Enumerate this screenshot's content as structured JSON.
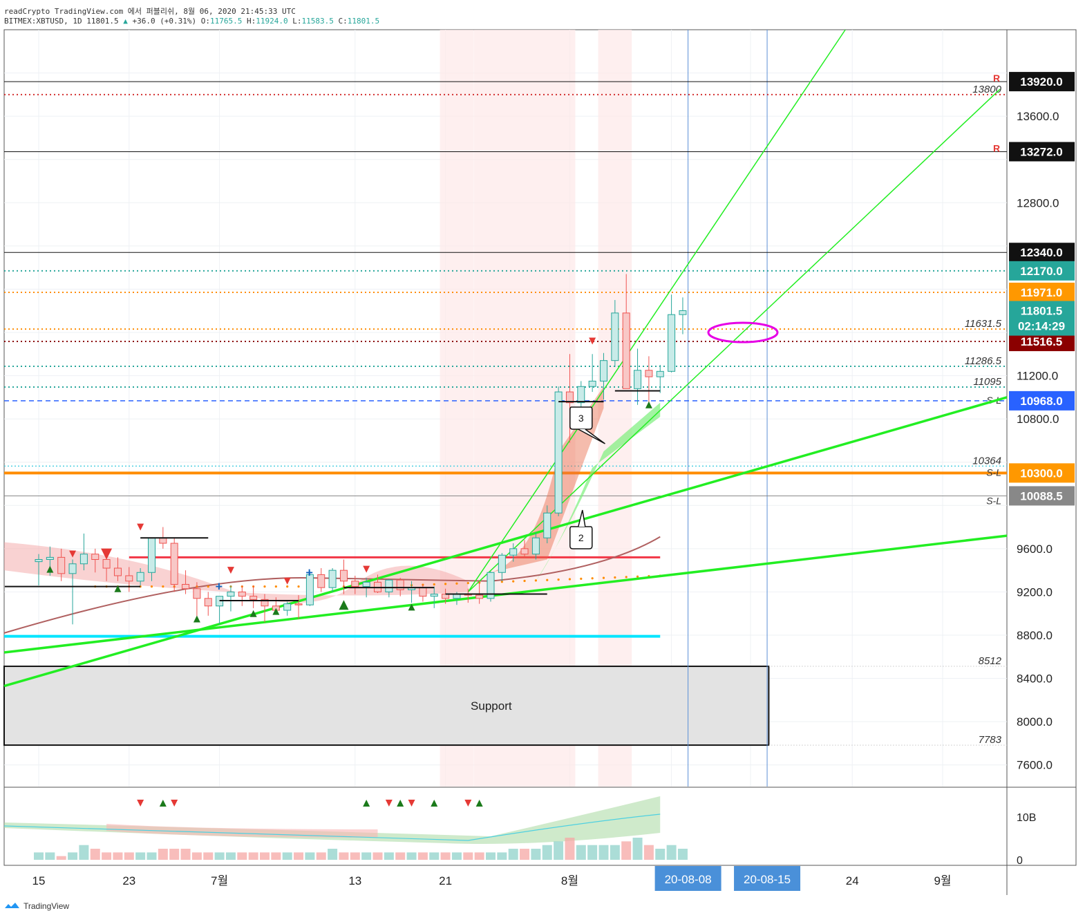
{
  "header": {
    "line1": "readCrypto TradingView.com 에서 퍼블리쉬, 8월 06, 2020 21:45:33 UTC",
    "symbol": "BITMEX:XBTUSD, 1D",
    "last": "11801.5",
    "change": "+36.0 (+0.31%)",
    "o_label": "O:",
    "o": "11765.5",
    "h_label": "H:",
    "h": "11924.0",
    "l_label": "L:",
    "l": "11583.5",
    "c_label": "C:",
    "c": "11801.5"
  },
  "footer": {
    "brand": "TradingView"
  },
  "colors": {
    "up": "#26a69a",
    "down": "#ef5350",
    "green_line": "#22ee22",
    "orange": "#ff8c00",
    "cyan": "#00e5ff",
    "red_line": "#f23645",
    "blue": "#2962ff",
    "magenta": "#e600e6"
  },
  "chart_data": {
    "type": "candlestick",
    "timeframe": "1D",
    "ylim": [
      7400,
      14400
    ],
    "y_ticks": [
      "7600.0",
      "8000.0",
      "8400.0",
      "8800.0",
      "9200.0",
      "9600.0",
      "10800.0",
      "11200.0",
      "12800.0",
      "13600.0"
    ],
    "x_ticks": [
      {
        "i": 0,
        "label": "15"
      },
      {
        "i": 8,
        "label": "23"
      },
      {
        "i": 16,
        "label": "7월"
      },
      {
        "i": 28,
        "label": "13"
      },
      {
        "i": 36,
        "label": "21"
      },
      {
        "i": 47,
        "label": "8월"
      },
      {
        "i": 56,
        "label": "20-08-08",
        "highlight": true
      },
      {
        "i": 63,
        "label": "20-08-15",
        "highlight": true
      },
      {
        "i": 72,
        "label": "24"
      },
      {
        "i": 80,
        "label": "9월"
      }
    ],
    "candles": [
      [
        9480,
        9550,
        9260,
        9500
      ],
      [
        9500,
        9620,
        9350,
        9520
      ],
      [
        9520,
        9600,
        9300,
        9370
      ],
      [
        9370,
        9500,
        8900,
        9460
      ],
      [
        9460,
        9740,
        9400,
        9550
      ],
      [
        9550,
        9600,
        9380,
        9500
      ],
      [
        9500,
        9560,
        9300,
        9420
      ],
      [
        9420,
        9520,
        9300,
        9350
      ],
      [
        9350,
        9430,
        9200,
        9300
      ],
      [
        9300,
        9420,
        9260,
        9380
      ],
      [
        9380,
        9700,
        9300,
        9700
      ],
      [
        9700,
        9800,
        9600,
        9650
      ],
      [
        9650,
        9700,
        9200,
        9270
      ],
      [
        9270,
        9400,
        9180,
        9230
      ],
      [
        9230,
        9290,
        8940,
        9140
      ],
      [
        9140,
        9200,
        8980,
        9070
      ],
      [
        9070,
        9130,
        8900,
        9160
      ],
      [
        9160,
        9260,
        9020,
        9200
      ],
      [
        9200,
        9260,
        9070,
        9160
      ],
      [
        9160,
        9260,
        9050,
        9130
      ],
      [
        9130,
        9180,
        8920,
        9070
      ],
      [
        9070,
        9150,
        9000,
        9030
      ],
      [
        9030,
        9110,
        8980,
        9090
      ],
      [
        9090,
        9170,
        8950,
        9080
      ],
      [
        9080,
        9390,
        9070,
        9360
      ],
      [
        9360,
        9420,
        9200,
        9240
      ],
      [
        9240,
        9420,
        9200,
        9400
      ],
      [
        9400,
        9500,
        9180,
        9300
      ],
      [
        9300,
        9350,
        9180,
        9250
      ],
      [
        9250,
        9330,
        9150,
        9290
      ],
      [
        9290,
        9360,
        9190,
        9200
      ],
      [
        9200,
        9320,
        9150,
        9310
      ],
      [
        9310,
        9330,
        9160,
        9220
      ],
      [
        9220,
        9300,
        9100,
        9240
      ],
      [
        9240,
        9270,
        9110,
        9160
      ],
      [
        9160,
        9250,
        9050,
        9180
      ],
      [
        9180,
        9230,
        9090,
        9140
      ],
      [
        9140,
        9200,
        9080,
        9180
      ],
      [
        9180,
        9230,
        9100,
        9170
      ],
      [
        9170,
        9300,
        9090,
        9140
      ],
      [
        9140,
        9390,
        9110,
        9380
      ],
      [
        9380,
        9560,
        9300,
        9540
      ],
      [
        9540,
        9650,
        9480,
        9600
      ],
      [
        9600,
        9680,
        9520,
        9550
      ],
      [
        9550,
        9750,
        9500,
        9700
      ],
      [
        9700,
        10000,
        9650,
        9930
      ],
      [
        9930,
        11100,
        9900,
        11050
      ],
      [
        11050,
        11400,
        10580,
        10950
      ],
      [
        10950,
        11150,
        10900,
        11100
      ],
      [
        11100,
        11400,
        11050,
        11150
      ],
      [
        11150,
        11410,
        10980,
        11340
      ],
      [
        11340,
        11900,
        11280,
        11780
      ],
      [
        11780,
        12140,
        11080,
        11080
      ],
      [
        11080,
        11450,
        10930,
        11250
      ],
      [
        11250,
        11380,
        10950,
        11190
      ],
      [
        11190,
        11300,
        11040,
        11240
      ],
      [
        11240,
        11950,
        11230,
        11765
      ],
      [
        11765,
        11924,
        11583.5,
        11801.5
      ]
    ],
    "volume": [
      2,
      2,
      1,
      2,
      4,
      3,
      2,
      2,
      2,
      2,
      2,
      3,
      3,
      3,
      2,
      2,
      2,
      2,
      2,
      2,
      2,
      2,
      2,
      2,
      2,
      2,
      3,
      2,
      2,
      2,
      2,
      2,
      2,
      2,
      2,
      2,
      2,
      2,
      2,
      2,
      2,
      2,
      3,
      3,
      3,
      4,
      5,
      6,
      4,
      4,
      4,
      4,
      5,
      6,
      4,
      3,
      4,
      3
    ],
    "horizontal_levels": [
      {
        "price": 13920,
        "label": "13920.0",
        "style": "solid-black",
        "badge": "black",
        "marker": "R"
      },
      {
        "price": 13800,
        "label": "13800",
        "style": "dotted-red"
      },
      {
        "price": 13272,
        "label": "13272.0",
        "style": "solid-black",
        "badge": "black",
        "marker": "R"
      },
      {
        "price": 12340,
        "label": "12340.0",
        "style": "solid-black",
        "badge": "black"
      },
      {
        "price": 12170,
        "label": "12170.0",
        "style": "dotted-teal",
        "badge": "teal"
      },
      {
        "price": 11971,
        "label": "11971.0",
        "style": "dotted-orange",
        "badge": "orange"
      },
      {
        "price": 11801.5,
        "label": "11801.5",
        "style": "none",
        "badge": "teal"
      },
      {
        "price": 11631.5,
        "label": "11631.5",
        "style": "dotted-orange"
      },
      {
        "price": 11516.5,
        "label": "11516.5",
        "style": "dotted-darkred",
        "badge": "darkred"
      },
      {
        "price": 11286.5,
        "label": "11286.5",
        "style": "dotted-teal"
      },
      {
        "price": 11095,
        "label": "11095",
        "style": "dotted-teal"
      },
      {
        "price": 10968,
        "label": "10968.0",
        "style": "dashed-blue",
        "badge": "blue",
        "tag": "S-L"
      },
      {
        "price": 10364,
        "label": "10364",
        "style": "dotted-cyan"
      },
      {
        "price": 10300,
        "label": "10300.0",
        "style": "solid-orange",
        "badge": "orange",
        "tag": "S-L"
      },
      {
        "price": 10088.5,
        "label": "10088.5",
        "style": "solid-gray",
        "badge": "gray",
        "tag": "S-L"
      },
      {
        "price": 8512,
        "label": "8512",
        "style": "dotted-gray"
      },
      {
        "price": 7783,
        "label": "7783",
        "style": "dotted-gray"
      }
    ],
    "countdown": "02:14:29",
    "support_box": {
      "label": "Support",
      "from_i": -3,
      "to_i": 64,
      "top": 8512,
      "bottom": 7783
    },
    "callouts": [
      "3",
      "2"
    ],
    "oscillator_ticks": [
      "10B",
      "0"
    ]
  }
}
